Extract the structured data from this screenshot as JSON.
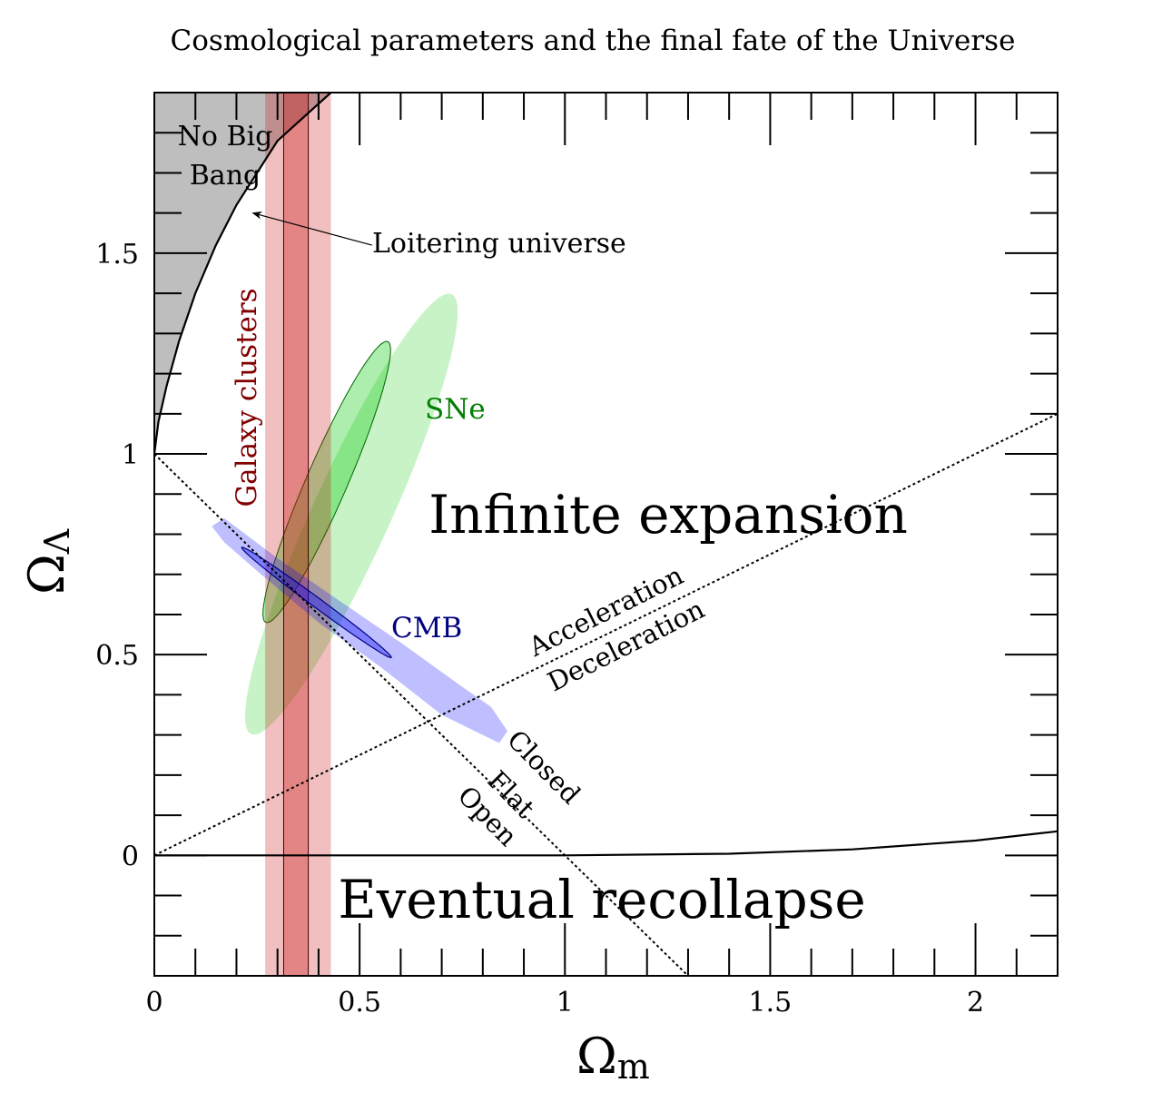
{
  "chart_data": {
    "type": "scatter",
    "title": "Cosmological parameters and the final fate of the Universe",
    "xlabel": "Ω",
    "xlabel_sub": "m",
    "ylabel": "Ω",
    "ylabel_sub": "Λ",
    "xlim": [
      0,
      2.2
    ],
    "ylim": [
      -0.3,
      1.9
    ],
    "x_ticks": [
      0,
      0.5,
      1,
      1.5,
      2
    ],
    "x_tick_labels": [
      "0",
      "0.5",
      "1",
      "1.5",
      "2"
    ],
    "y_ticks": [
      0,
      0.5,
      1,
      1.5
    ],
    "y_tick_labels": [
      "0",
      "0.5",
      "1",
      "1.5"
    ],
    "minor_tick_step": 0.1,
    "grid": false,
    "regions": {
      "no_big_bang": {
        "label_lines": [
          "No Big",
          "Bang"
        ],
        "color": "#bebebe",
        "boundary": [
          [
            0,
            1.0
          ],
          [
            0.01,
            1.08
          ],
          [
            0.03,
            1.17
          ],
          [
            0.06,
            1.28
          ],
          [
            0.1,
            1.4
          ],
          [
            0.15,
            1.52
          ],
          [
            0.2,
            1.62
          ],
          [
            0.3,
            1.78
          ],
          [
            0.43,
            1.9
          ]
        ]
      },
      "infinite_expansion": {
        "label": "Infinite expansion"
      },
      "eventual_recollapse": {
        "label": "Eventual recollapse",
        "boundary": [
          [
            0,
            0
          ],
          [
            1,
            0
          ],
          [
            1.4,
            0.004
          ],
          [
            1.7,
            0.015
          ],
          [
            2.0,
            0.037
          ],
          [
            2.2,
            0.06
          ]
        ]
      }
    },
    "lines": {
      "flat": {
        "points": [
          [
            0,
            1
          ],
          [
            1.3,
            -0.3
          ]
        ],
        "labels": [
          "Closed",
          "Flat",
          "Open"
        ]
      },
      "acceleration": {
        "points": [
          [
            0,
            0
          ],
          [
            2.2,
            1.1
          ]
        ],
        "labels": [
          "Acceleration",
          "Deceleration"
        ]
      }
    },
    "series": [
      {
        "name": "Galaxy clusters",
        "kind": "band",
        "color": "#c80000",
        "outer": [
          0.27,
          0.43
        ],
        "inner": [
          0.315,
          0.375
        ],
        "label_color": "#800000"
      },
      {
        "name": "SNe",
        "kind": "ellipses",
        "color": "#00c800",
        "edge_color": "#006400",
        "label_color": "#008000",
        "outer": {
          "center": [
            0.48,
            0.85
          ],
          "semi_major": 0.6,
          "semi_minor": 0.095,
          "angle_deg": 66
        },
        "inner": {
          "center": [
            0.42,
            0.93
          ],
          "semi_major": 0.38,
          "semi_minor": 0.05,
          "angle_deg": 67
        }
      },
      {
        "name": "CMB",
        "kind": "contours",
        "color": "#0000ff",
        "edge_color": "#000080",
        "label_color": "#000080",
        "outer": [
          [
            0.14,
            0.82
          ],
          [
            0.17,
            0.84
          ],
          [
            0.3,
            0.74
          ],
          [
            0.5,
            0.6
          ],
          [
            0.6,
            0.53
          ],
          [
            0.75,
            0.42
          ],
          [
            0.82,
            0.37
          ],
          [
            0.86,
            0.31
          ],
          [
            0.84,
            0.28
          ],
          [
            0.78,
            0.31
          ],
          [
            0.7,
            0.35
          ],
          [
            0.55,
            0.47
          ],
          [
            0.4,
            0.58
          ],
          [
            0.26,
            0.7
          ],
          [
            0.17,
            0.78
          ]
        ],
        "inner": {
          "center": [
            0.395,
            0.63
          ],
          "semi_major": 0.228,
          "semi_minor": 0.012,
          "angle_deg": -37
        }
      }
    ],
    "annotations": {
      "loitering": {
        "text": "Loitering universe",
        "points_to": [
          0.24,
          1.6
        ],
        "text_at": [
          0.53,
          1.52
        ]
      }
    }
  }
}
